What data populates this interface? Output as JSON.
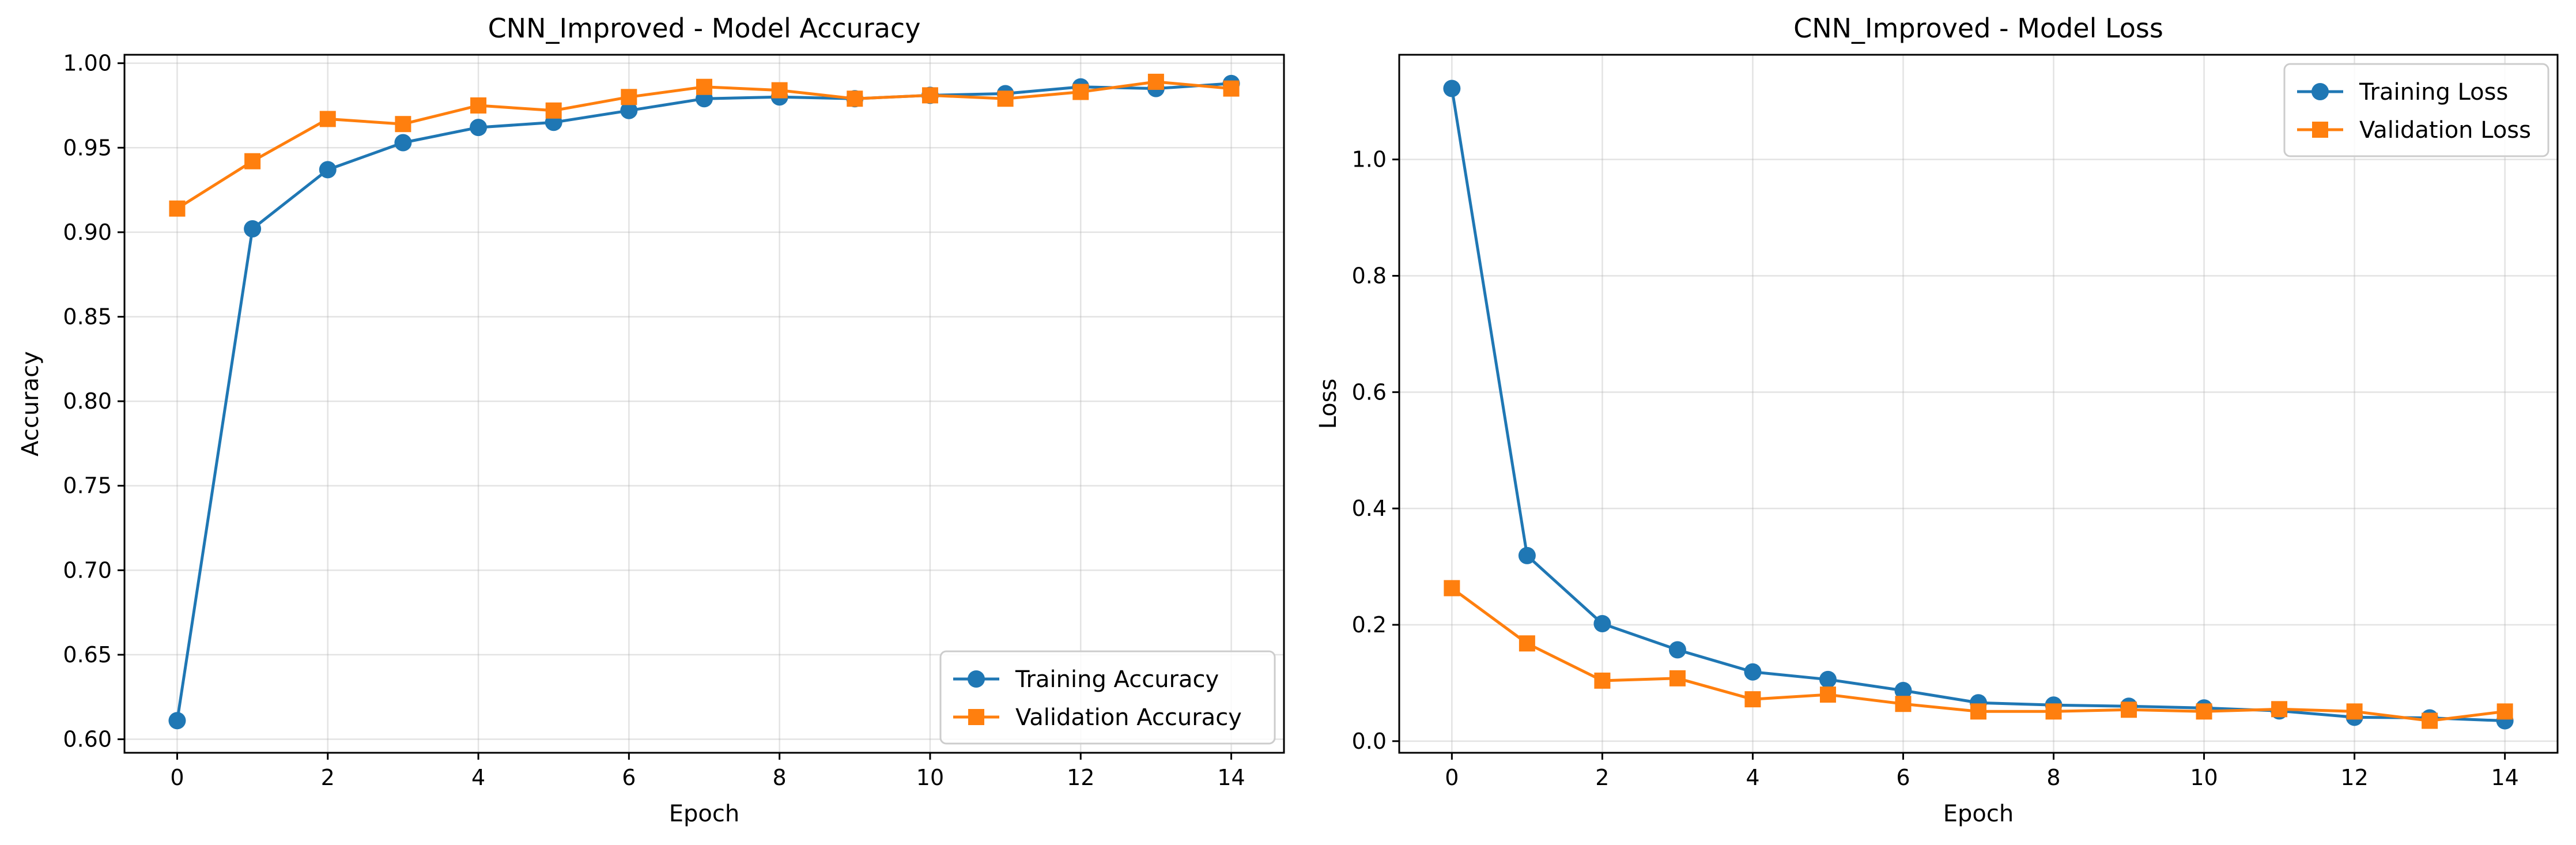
{
  "chart_data": [
    {
      "type": "line",
      "title": "CNN_Improved - Model Accuracy",
      "xlabel": "Epoch",
      "ylabel": "Accuracy",
      "xlim": [
        -0.7,
        14.7
      ],
      "ylim": [
        0.592,
        1.005
      ],
      "xticks": [
        0,
        2,
        4,
        6,
        8,
        10,
        12,
        14
      ],
      "xtick_labels": [
        "0",
        "2",
        "4",
        "6",
        "8",
        "10",
        "12",
        "14"
      ],
      "yticks": [
        0.6,
        0.65,
        0.7,
        0.75,
        0.8,
        0.85,
        0.9,
        0.95,
        1.0
      ],
      "ytick_labels": [
        "0.60",
        "0.65",
        "0.70",
        "0.75",
        "0.80",
        "0.85",
        "0.90",
        "0.95",
        "1.00"
      ],
      "grid": true,
      "legend_position": "lower-right",
      "x": [
        0,
        1,
        2,
        3,
        4,
        5,
        6,
        7,
        8,
        9,
        10,
        11,
        12,
        13,
        14
      ],
      "series": [
        {
          "name": "Training Accuracy",
          "color": "#1f77b4",
          "marker": "circle",
          "values": [
            0.611,
            0.902,
            0.937,
            0.953,
            0.962,
            0.965,
            0.972,
            0.979,
            0.98,
            0.979,
            0.981,
            0.982,
            0.986,
            0.985,
            0.988
          ]
        },
        {
          "name": "Validation Accuracy",
          "color": "#ff7f0e",
          "marker": "square",
          "values": [
            0.914,
            0.942,
            0.967,
            0.964,
            0.975,
            0.972,
            0.98,
            0.986,
            0.984,
            0.979,
            0.981,
            0.979,
            0.983,
            0.989,
            0.985
          ]
        }
      ]
    },
    {
      "type": "line",
      "title": "CNN_Improved - Model Loss",
      "xlabel": "Epoch",
      "ylabel": "Loss",
      "xlim": [
        -0.7,
        14.7
      ],
      "ylim": [
        -0.02,
        1.18
      ],
      "xticks": [
        0,
        2,
        4,
        6,
        8,
        10,
        12,
        14
      ],
      "xtick_labels": [
        "0",
        "2",
        "4",
        "6",
        "8",
        "10",
        "12",
        "14"
      ],
      "yticks": [
        0.0,
        0.2,
        0.4,
        0.6,
        0.8,
        1.0
      ],
      "ytick_labels": [
        "0.0",
        "0.2",
        "0.4",
        "0.6",
        "0.8",
        "1.0"
      ],
      "grid": true,
      "legend_position": "upper-right",
      "x": [
        0,
        1,
        2,
        3,
        4,
        5,
        6,
        7,
        8,
        9,
        10,
        11,
        12,
        13,
        14
      ],
      "series": [
        {
          "name": "Training Loss",
          "color": "#1f77b4",
          "marker": "circle",
          "values": [
            1.122,
            0.319,
            0.202,
            0.157,
            0.119,
            0.106,
            0.087,
            0.066,
            0.062,
            0.06,
            0.057,
            0.052,
            0.041,
            0.04,
            0.035
          ]
        },
        {
          "name": "Validation Loss",
          "color": "#ff7f0e",
          "marker": "square",
          "values": [
            0.263,
            0.168,
            0.104,
            0.108,
            0.072,
            0.08,
            0.064,
            0.051,
            0.051,
            0.054,
            0.051,
            0.055,
            0.051,
            0.035,
            0.051
          ]
        }
      ]
    }
  ]
}
